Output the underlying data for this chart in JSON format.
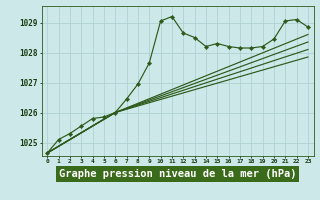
{
  "background_color": "#cce8e8",
  "plot_bg_color": "#cce8e8",
  "grid_color": "#aacece",
  "line_color": "#2d5a1b",
  "marker_color": "#2d5a1b",
  "xlabel": "Graphe pression niveau de la mer (hPa)",
  "xlabel_fontsize": 7.5,
  "xlabel_bg": "#3a6b1a",
  "xlabel_fg": "#ffffff",
  "ylim": [
    1024.55,
    1029.55
  ],
  "xlim": [
    -0.5,
    23.5
  ],
  "yticks": [
    1025,
    1026,
    1027,
    1028,
    1029
  ],
  "xticks": [
    0,
    1,
    2,
    3,
    4,
    5,
    6,
    7,
    8,
    9,
    10,
    11,
    12,
    13,
    14,
    15,
    16,
    17,
    18,
    19,
    20,
    21,
    22,
    23
  ],
  "main_x": [
    0,
    1,
    2,
    3,
    4,
    5,
    6,
    7,
    8,
    9,
    10,
    11,
    12,
    13,
    14,
    15,
    16,
    17,
    18,
    19,
    20,
    21,
    22,
    23
  ],
  "main_y": [
    1024.65,
    1025.1,
    1025.3,
    1025.55,
    1025.8,
    1025.85,
    1026.0,
    1026.45,
    1026.95,
    1027.65,
    1029.05,
    1029.2,
    1028.65,
    1028.5,
    1028.2,
    1028.3,
    1028.2,
    1028.15,
    1028.15,
    1028.2,
    1028.45,
    1029.05,
    1029.1,
    1028.85
  ],
  "line2_x": [
    0,
    6,
    23
  ],
  "line2_y": [
    1024.65,
    1026.0,
    1028.35
  ],
  "line3_x": [
    0,
    6,
    23
  ],
  "line3_y": [
    1024.65,
    1026.0,
    1028.1
  ],
  "line4_x": [
    0,
    6,
    23
  ],
  "line4_y": [
    1024.65,
    1026.0,
    1027.85
  ],
  "line5_x": [
    0,
    6,
    23
  ],
  "line5_y": [
    1024.65,
    1026.0,
    1028.6
  ]
}
